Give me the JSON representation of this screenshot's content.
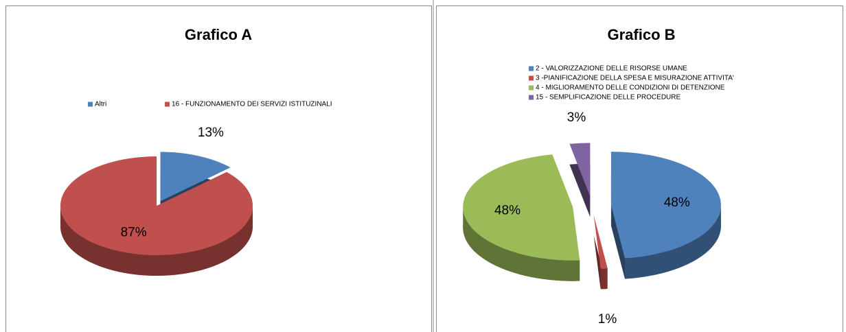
{
  "chart_data": [
    {
      "type": "pie",
      "title": "Grafico A",
      "categories": [
        "Altri",
        "16 - FUNZIONAMENTO DEI SERVIZI ISTITUZINALI"
      ],
      "values": [
        13,
        87
      ],
      "value_labels": [
        "13%",
        "87%"
      ],
      "colors": [
        "#4f81bd",
        "#c0504d"
      ],
      "legend": "top"
    },
    {
      "type": "pie",
      "title": "Grafico B",
      "categories": [
        "2  - VALORIZZAZIONE DELLE RISORSE UMANE",
        "3 -PIANIFICAZIONE DELLA SPESA E MISURAZIONE ATTIVITA'",
        "4 - MIGLIORAMENTO DELLE CONDIZIONI DI DETENZIONE",
        "15 - SEMPLIFICAZIONE DELLE PROCEDURE"
      ],
      "values": [
        48,
        1,
        48,
        3
      ],
      "value_labels": [
        "48%",
        "1%",
        "48%",
        "3%"
      ],
      "colors": [
        "#4f81bd",
        "#c0504d",
        "#9bbb59",
        "#8064a2"
      ],
      "legend": "top-left"
    }
  ]
}
